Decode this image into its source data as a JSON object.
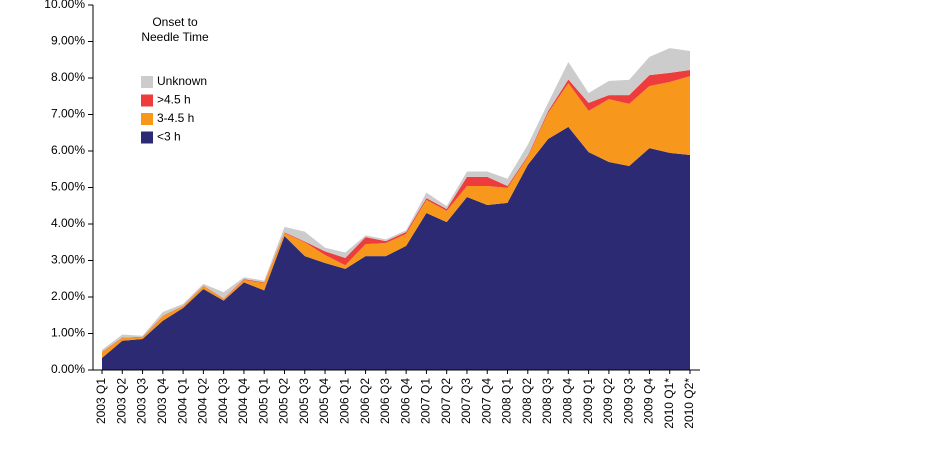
{
  "chart_data": {
    "type": "stacked_area",
    "legend_title": [
      "Onset to",
      "Needle Time"
    ],
    "categories": [
      "2003 Q1",
      "2003 Q2",
      "2003 Q3",
      "2003 Q4",
      "2004 Q1",
      "2004 Q2",
      "2004 Q3",
      "2004 Q4",
      "2005 Q1",
      "2005 Q2",
      "2005 Q3",
      "2005 Q4",
      "2006 Q1",
      "2006 Q2",
      "2006 Q3",
      "2006 Q4",
      "2007 Q1",
      "2007 Q2",
      "2007 Q3",
      "2007 Q4",
      "2008 Q1",
      "2008 Q2",
      "2008 Q3",
      "2008 Q4",
      "2009 Q1",
      "2009 Q2",
      "2009 Q3",
      "2009 Q4",
      "2010 Q1*",
      "2010 Q2*"
    ],
    "series": [
      {
        "name": "<3 h",
        "color": "#2b2a73",
        "values": [
          0.33,
          0.8,
          0.85,
          1.35,
          1.7,
          2.22,
          1.9,
          2.4,
          2.18,
          3.67,
          3.12,
          2.93,
          2.77,
          3.12,
          3.12,
          3.4,
          4.3,
          4.05,
          4.74,
          4.52,
          4.58,
          5.62,
          6.33,
          6.66,
          5.97,
          5.7,
          5.59,
          6.08,
          5.95,
          5.89
        ]
      },
      {
        "name": "3-4.5 h",
        "color": "#f7981d",
        "values": [
          0.16,
          0.08,
          0.05,
          0.13,
          0.05,
          0.08,
          0.05,
          0.07,
          0.2,
          0.08,
          0.38,
          0.22,
          0.1,
          0.33,
          0.36,
          0.33,
          0.36,
          0.31,
          0.3,
          0.52,
          0.41,
          0.22,
          0.71,
          1.2,
          1.13,
          1.72,
          1.7,
          1.7,
          1.94,
          2.16
        ]
      },
      {
        "name": ">4.5 h",
        "color": "#ee3b3b",
        "values": [
          0.01,
          0.01,
          0.01,
          0.01,
          0.01,
          0.01,
          0.01,
          0.02,
          0.02,
          0.02,
          0.02,
          0.1,
          0.2,
          0.19,
          0.05,
          0.05,
          0.05,
          0.05,
          0.25,
          0.25,
          0.05,
          0.03,
          0.05,
          0.1,
          0.22,
          0.11,
          0.24,
          0.3,
          0.25,
          0.17
        ]
      },
      {
        "name": "Unknown",
        "color": "#cccccc",
        "values": [
          0.05,
          0.08,
          0.03,
          0.1,
          0.05,
          0.05,
          0.17,
          0.05,
          0.05,
          0.15,
          0.27,
          0.1,
          0.15,
          0.05,
          0.05,
          0.05,
          0.15,
          0.08,
          0.15,
          0.15,
          0.2,
          0.3,
          0.23,
          0.48,
          0.27,
          0.39,
          0.42,
          0.5,
          0.68,
          0.52
        ]
      }
    ],
    "ylim": [
      0,
      10
    ],
    "yticks": [
      {
        "value": 0,
        "label": "0.00%"
      },
      {
        "value": 1,
        "label": "1.00%"
      },
      {
        "value": 2,
        "label": "2.00%"
      },
      {
        "value": 3,
        "label": "3.00%"
      },
      {
        "value": 4,
        "label": "4.00%"
      },
      {
        "value": 5,
        "label": "5.00%"
      },
      {
        "value": 6,
        "label": "6.00%"
      },
      {
        "value": 7,
        "label": "7.00%"
      },
      {
        "value": 8,
        "label": "8.00%"
      },
      {
        "value": 9,
        "label": "9.00%"
      },
      {
        "value": 10,
        "label": "10.00%"
      }
    ],
    "grid": false,
    "legend": "upper left"
  }
}
